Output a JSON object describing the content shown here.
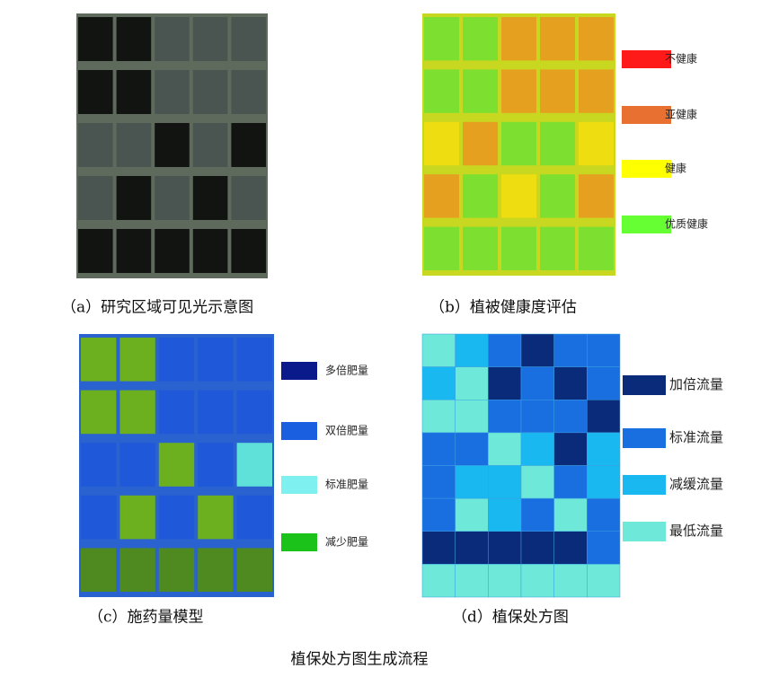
{
  "panels": [
    {
      "caption": "（a）研究区域可见光示意图"
    },
    {
      "caption": "（b）植被健康度评估",
      "legend": [
        "不健康",
        "亚健康",
        "健康",
        "优质健康"
      ]
    },
    {
      "caption": "（c）施药量模型",
      "legend": [
        "多倍肥量",
        "双倍肥量",
        "标准肥量",
        "减少肥量"
      ]
    },
    {
      "caption": "（d）植保处方图",
      "legend": [
        "加倍流量",
        "标准流量",
        "减缓流量",
        "最低流量"
      ],
      "grid": [
        [
          3,
          2,
          1,
          0,
          1,
          1
        ],
        [
          2,
          3,
          0,
          1,
          0,
          1
        ],
        [
          3,
          3,
          1,
          1,
          1,
          0
        ],
        [
          1,
          1,
          3,
          2,
          0,
          2
        ],
        [
          1,
          2,
          2,
          3,
          1,
          2
        ],
        [
          1,
          3,
          2,
          1,
          3,
          1
        ],
        [
          0,
          0,
          0,
          0,
          0,
          1
        ],
        [
          3,
          3,
          3,
          3,
          3,
          3
        ]
      ]
    }
  ],
  "figure_caption": "植保处方图生成流程"
}
